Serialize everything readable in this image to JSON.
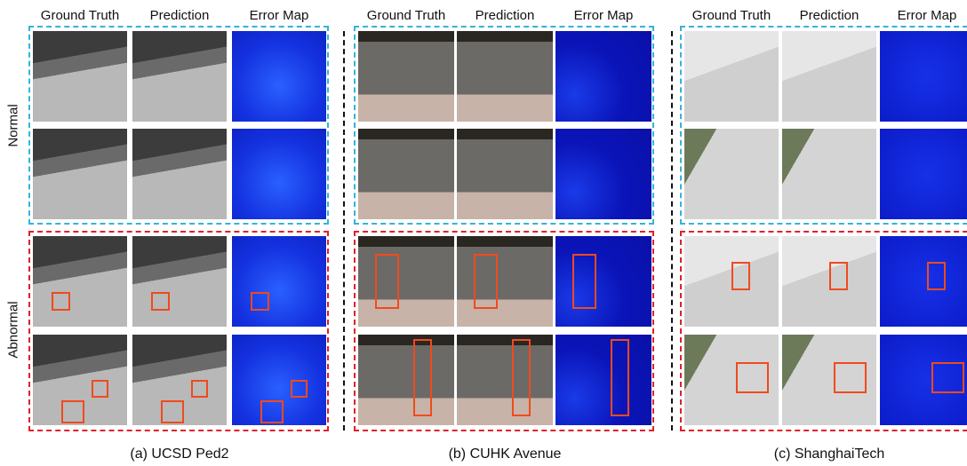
{
  "row_labels": [
    "Normal",
    "Abnormal"
  ],
  "panels": [
    {
      "headers": [
        "Ground Truth",
        "Prediction",
        "Error Map"
      ],
      "caption": "(a) UCSD Ped2"
    },
    {
      "headers": [
        "Ground Truth",
        "Prediction",
        "Error Map"
      ],
      "caption": "(b) CUHK Avenue"
    },
    {
      "headers": [
        "Ground Truth",
        "Prediction",
        "Error Map"
      ],
      "caption": "(c) ShanghaiTech"
    }
  ]
}
